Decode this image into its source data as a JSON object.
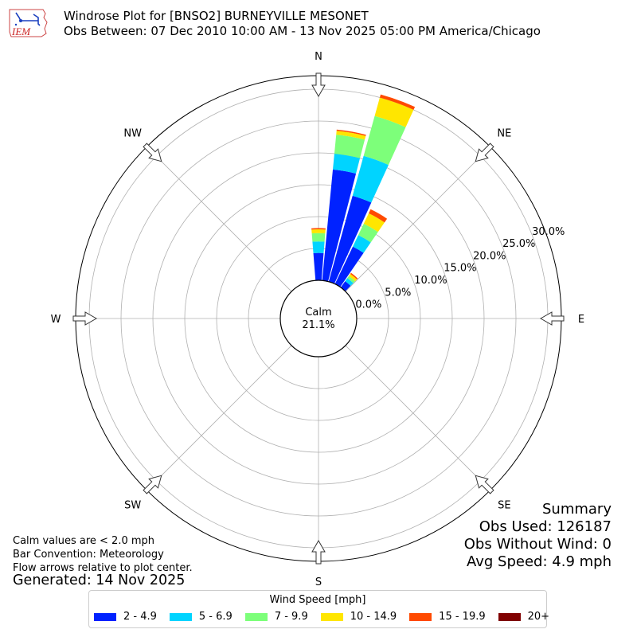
{
  "header": {
    "logo_text": "IEM",
    "title_line1": "Windrose Plot for [BNSO2] BURNEYVILLE MESONET",
    "title_line2": "Obs Between: 07 Dec 2010 10:00 AM - 13 Nov 2025 05:00 PM America/Chicago"
  },
  "calm": {
    "label": "Calm",
    "value": "21.1%"
  },
  "directions": [
    "N",
    "NE",
    "E",
    "SE",
    "S",
    "SW",
    "W",
    "NW"
  ],
  "radial_labels": [
    "0.0%",
    "5.0%",
    "10.0%",
    "15.0%",
    "20.0%",
    "25.0%",
    "30.0%"
  ],
  "notes": {
    "line1": "Calm values are < 2.0 mph",
    "line2": "Bar Convention: Meteorology",
    "line3": "Flow arrows relative to plot center.",
    "generated": "Generated: 14 Nov 2025"
  },
  "summary": {
    "title": "Summary",
    "obs_used": "Obs Used: 126187",
    "obs_without_wind": "Obs Without Wind: 0",
    "avg_speed": "Avg Speed: 4.9 mph"
  },
  "legend": {
    "title": "Wind Speed [mph]",
    "items": [
      {
        "label": "2 - 4.9",
        "color": "#0022ff"
      },
      {
        "label": "5 - 6.9",
        "color": "#00d4ff"
      },
      {
        "label": "7 - 9.9",
        "color": "#7dff7a"
      },
      {
        "label": "10 - 14.9",
        "color": "#ffe600"
      },
      {
        "label": "15 - 19.9",
        "color": "#ff4a00"
      },
      {
        "label": "20+",
        "color": "#800000"
      }
    ]
  },
  "chart_data": {
    "type": "windrose",
    "title": "Windrose Plot for [BNSO2] BURNEYVILLE MESONET",
    "subtitle": "Obs Between: 07 Dec 2010 10:00 AM - 13 Nov 2025 05:00 PM America/Chicago",
    "radial_unit": "% of observations (cumulative)",
    "rlim": [
      0,
      32
    ],
    "r_ticks": [
      0,
      5,
      10,
      15,
      20,
      25,
      30
    ],
    "calm_percent": 21.1,
    "speed_bins": [
      "2 - 4.9",
      "5 - 6.9",
      "7 - 9.9",
      "10 - 14.9",
      "15 - 19.9",
      "20+"
    ],
    "sector_width_deg": 10,
    "sectors": [
      {
        "direction_deg": 0,
        "cumulative": [
          4.3,
          6.1,
          7.4,
          8.0,
          8.2,
          8.2
        ]
      },
      {
        "direction_deg": 10,
        "cumulative": [
          17.5,
          20.0,
          23.0,
          23.6,
          23.8,
          23.8
        ]
      },
      {
        "direction_deg": 20,
        "cumulative": [
          14.0,
          20.5,
          27.0,
          30.0,
          30.5,
          30.5
        ]
      },
      {
        "direction_deg": 30,
        "cumulative": [
          6.5,
          8.5,
          10.5,
          12.3,
          13.0,
          13.0
        ]
      },
      {
        "direction_deg": 40,
        "cumulative": [
          1.2,
          1.8,
          2.2,
          2.6,
          2.8,
          2.8
        ]
      }
    ],
    "legend_position": "bottom",
    "grid": true
  }
}
